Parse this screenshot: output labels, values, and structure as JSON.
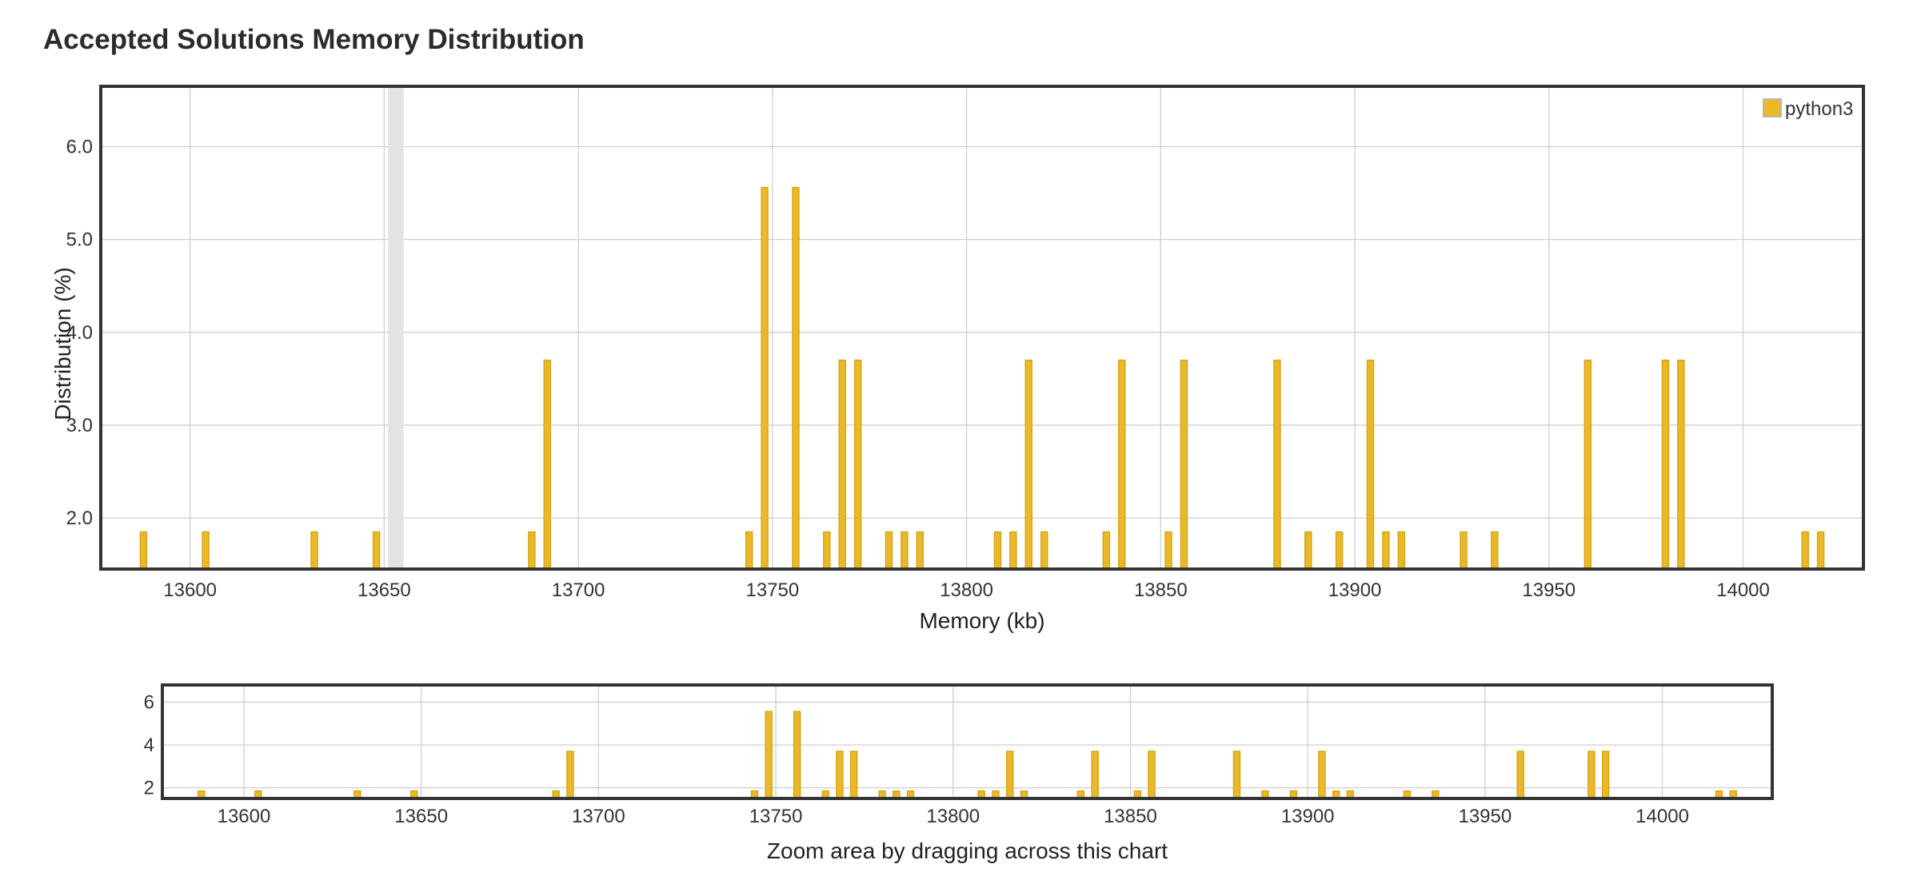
{
  "page": {
    "title": "Accepted Solutions Memory Distribution"
  },
  "zoom_caption": "Zoom area by dragging across this chart",
  "colors": {
    "bar_fill": "#eab92a",
    "bar_stroke": "#d9a516",
    "grid": "#cfcfcf",
    "frame": "#333333",
    "highlight": "#e3e3e3"
  },
  "chart_data": [
    {
      "id": "main",
      "type": "bar",
      "xlabel": "Memory (kb)",
      "ylabel": "Distribution (%)",
      "xlim": [
        13577,
        14031
      ],
      "ylim": [
        1.45,
        6.65
      ],
      "xticks": [
        13600,
        13650,
        13700,
        13750,
        13800,
        13850,
        13900,
        13950,
        14000
      ],
      "yticks": [
        2.0,
        3.0,
        4.0,
        5.0,
        6.0
      ],
      "ytick_labels": [
        "2.0",
        "3.0",
        "4.0",
        "5.0",
        "6.0"
      ],
      "grid": true,
      "legend": {
        "position": "top-right",
        "entries": [
          "python3"
        ]
      },
      "highlight_band": [
        13651,
        13655
      ],
      "series": [
        {
          "name": "python3",
          "points": [
            [
              13588,
              1.85
            ],
            [
              13604,
              1.85
            ],
            [
              13632,
              1.85
            ],
            [
              13648,
              1.85
            ],
            [
              13688,
              1.85
            ],
            [
              13692,
              3.7
            ],
            [
              13744,
              1.85
            ],
            [
              13748,
              5.56
            ],
            [
              13756,
              5.56
            ],
            [
              13764,
              1.85
            ],
            [
              13768,
              3.7
            ],
            [
              13772,
              3.7
            ],
            [
              13780,
              1.85
            ],
            [
              13784,
              1.85
            ],
            [
              13788,
              1.85
            ],
            [
              13808,
              1.85
            ],
            [
              13812,
              1.85
            ],
            [
              13816,
              3.7
            ],
            [
              13820,
              1.85
            ],
            [
              13836,
              1.85
            ],
            [
              13840,
              3.7
            ],
            [
              13852,
              1.85
            ],
            [
              13856,
              3.7
            ],
            [
              13880,
              3.7
            ],
            [
              13888,
              1.85
            ],
            [
              13896,
              1.85
            ],
            [
              13904,
              3.7
            ],
            [
              13908,
              1.85
            ],
            [
              13912,
              1.85
            ],
            [
              13928,
              1.85
            ],
            [
              13936,
              1.85
            ],
            [
              13960,
              3.7
            ],
            [
              13980,
              3.7
            ],
            [
              13984,
              3.7
            ],
            [
              14016,
              1.85
            ],
            [
              14020,
              1.85
            ]
          ]
        }
      ]
    },
    {
      "id": "navigator",
      "type": "bar",
      "xlim": [
        13577,
        14031
      ],
      "ylim": [
        1.5,
        6.8
      ],
      "xticks": [
        13600,
        13650,
        13700,
        13750,
        13800,
        13850,
        13900,
        13950,
        14000
      ],
      "yticks": [
        2,
        4,
        6
      ],
      "ytick_labels": [
        "2",
        "4",
        "6"
      ],
      "grid": true,
      "series_ref": "python3"
    }
  ]
}
